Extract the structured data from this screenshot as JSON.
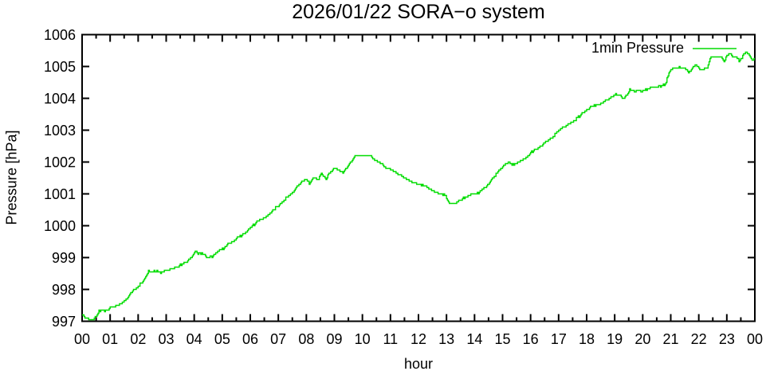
{
  "legend": {
    "label": "1min Pressure"
  },
  "colors": {
    "background": "#ffffff",
    "axis": "#000000",
    "series_green": "#00dc00"
  },
  "chart_data": {
    "type": "line",
    "title": "2026/01/22 SORA−o system",
    "xlabel": "hour",
    "ylabel": "Pressure [hPa]",
    "xlim": [
      0,
      24
    ],
    "ylim": [
      997,
      1006
    ],
    "x_tick_labels": [
      "00",
      "01",
      "02",
      "03",
      "04",
      "05",
      "06",
      "07",
      "08",
      "09",
      "10",
      "11",
      "12",
      "13",
      "14",
      "15",
      "16",
      "17",
      "18",
      "19",
      "20",
      "21",
      "22",
      "23",
      "00"
    ],
    "x_minor_tick_interval": 0.5,
    "y_ticks": [
      997,
      998,
      999,
      1000,
      1001,
      1002,
      1003,
      1004,
      1005,
      1006
    ],
    "grid": false,
    "legend_position": "top-right",
    "series": [
      {
        "name": "1min Pressure",
        "color": "#00dc00",
        "cadence": "1 minute samples",
        "units": "hPa",
        "points": [
          [
            0.0,
            997.22
          ],
          [
            0.1,
            997.12
          ],
          [
            0.2,
            997.07
          ],
          [
            0.35,
            997.05
          ],
          [
            0.5,
            997.13
          ],
          [
            0.6,
            997.32
          ],
          [
            0.75,
            997.33
          ],
          [
            0.9,
            997.36
          ],
          [
            1.0,
            997.44
          ],
          [
            1.15,
            997.45
          ],
          [
            1.3,
            997.5
          ],
          [
            1.45,
            997.6
          ],
          [
            1.6,
            997.74
          ],
          [
            1.7,
            997.85
          ],
          [
            1.85,
            998.0
          ],
          [
            2.0,
            998.1
          ],
          [
            2.15,
            998.25
          ],
          [
            2.27,
            998.4
          ],
          [
            2.36,
            998.58
          ],
          [
            2.5,
            998.55
          ],
          [
            2.65,
            998.6
          ],
          [
            2.8,
            998.52
          ],
          [
            2.95,
            998.6
          ],
          [
            3.1,
            998.6
          ],
          [
            3.27,
            998.67
          ],
          [
            3.41,
            998.72
          ],
          [
            3.56,
            998.79
          ],
          [
            3.7,
            998.86
          ],
          [
            3.9,
            999.0
          ],
          [
            4.03,
            999.2
          ],
          [
            4.1,
            999.15
          ],
          [
            4.3,
            999.12
          ],
          [
            4.45,
            999.0
          ],
          [
            4.62,
            999.03
          ],
          [
            4.75,
            999.1
          ],
          [
            4.9,
            999.24
          ],
          [
            5.05,
            999.3
          ],
          [
            5.2,
            999.42
          ],
          [
            5.35,
            999.5
          ],
          [
            5.5,
            999.6
          ],
          [
            5.65,
            999.68
          ],
          [
            5.8,
            999.76
          ],
          [
            5.95,
            999.9
          ],
          [
            6.08,
            1000.0
          ],
          [
            6.2,
            1000.1
          ],
          [
            6.35,
            1000.2
          ],
          [
            6.5,
            1000.25
          ],
          [
            6.65,
            1000.35
          ],
          [
            6.8,
            1000.48
          ],
          [
            6.95,
            1000.6
          ],
          [
            7.1,
            1000.7
          ],
          [
            7.25,
            1000.85
          ],
          [
            7.4,
            1000.95
          ],
          [
            7.55,
            1001.1
          ],
          [
            7.7,
            1001.25
          ],
          [
            7.85,
            1001.4
          ],
          [
            8.0,
            1001.45
          ],
          [
            8.12,
            1001.32
          ],
          [
            8.25,
            1001.5
          ],
          [
            8.4,
            1001.45
          ],
          [
            8.55,
            1001.65
          ],
          [
            8.7,
            1001.45
          ],
          [
            8.85,
            1001.7
          ],
          [
            9.0,
            1001.8
          ],
          [
            9.15,
            1001.75
          ],
          [
            9.3,
            1001.68
          ],
          [
            9.45,
            1001.85
          ],
          [
            9.6,
            1002.02
          ],
          [
            9.75,
            1002.2
          ],
          [
            10.25,
            1002.2
          ],
          [
            10.4,
            1002.08
          ],
          [
            10.55,
            1002.0
          ],
          [
            10.7,
            1001.92
          ],
          [
            10.85,
            1001.8
          ],
          [
            11.0,
            1001.75
          ],
          [
            11.2,
            1001.65
          ],
          [
            11.4,
            1001.55
          ],
          [
            11.6,
            1001.45
          ],
          [
            11.8,
            1001.35
          ],
          [
            12.0,
            1001.3
          ],
          [
            12.2,
            1001.27
          ],
          [
            12.4,
            1001.15
          ],
          [
            12.6,
            1001.05
          ],
          [
            12.8,
            1001.0
          ],
          [
            12.95,
            1000.95
          ],
          [
            13.1,
            1000.72
          ],
          [
            13.25,
            1000.68
          ],
          [
            13.4,
            1000.76
          ],
          [
            13.55,
            1000.85
          ],
          [
            13.7,
            1000.9
          ],
          [
            13.9,
            1000.97
          ],
          [
            14.1,
            1001.02
          ],
          [
            14.3,
            1001.15
          ],
          [
            14.5,
            1001.3
          ],
          [
            14.7,
            1001.55
          ],
          [
            14.85,
            1001.7
          ],
          [
            15.0,
            1001.85
          ],
          [
            15.2,
            1002.0
          ],
          [
            15.4,
            1001.9
          ],
          [
            15.6,
            1002.02
          ],
          [
            15.8,
            1002.08
          ],
          [
            16.0,
            1002.3
          ],
          [
            16.15,
            1002.38
          ],
          [
            16.3,
            1002.45
          ],
          [
            16.45,
            1002.55
          ],
          [
            16.6,
            1002.65
          ],
          [
            16.8,
            1002.8
          ],
          [
            17.0,
            1003.0
          ],
          [
            17.15,
            1003.08
          ],
          [
            17.3,
            1003.17
          ],
          [
            17.45,
            1003.25
          ],
          [
            17.6,
            1003.33
          ],
          [
            17.75,
            1003.45
          ],
          [
            17.9,
            1003.57
          ],
          [
            18.05,
            1003.68
          ],
          [
            18.2,
            1003.77
          ],
          [
            18.4,
            1003.8
          ],
          [
            18.6,
            1003.88
          ],
          [
            18.75,
            1003.97
          ],
          [
            18.95,
            1004.1
          ],
          [
            19.2,
            1004.12
          ],
          [
            19.28,
            1003.97
          ],
          [
            19.4,
            1004.1
          ],
          [
            19.55,
            1004.28
          ],
          [
            19.7,
            1004.22
          ],
          [
            19.95,
            1004.22
          ],
          [
            20.15,
            1004.28
          ],
          [
            20.35,
            1004.35
          ],
          [
            20.6,
            1004.38
          ],
          [
            20.8,
            1004.45
          ],
          [
            20.95,
            1004.85
          ],
          [
            21.1,
            1004.93
          ],
          [
            21.3,
            1004.97
          ],
          [
            21.5,
            1004.95
          ],
          [
            21.63,
            1004.8
          ],
          [
            21.75,
            1004.92
          ],
          [
            21.88,
            1005.05
          ],
          [
            22.0,
            1004.92
          ],
          [
            22.15,
            1004.9
          ],
          [
            22.3,
            1004.97
          ],
          [
            22.42,
            1005.3
          ],
          [
            22.8,
            1005.3
          ],
          [
            22.9,
            1005.17
          ],
          [
            23.0,
            1005.35
          ],
          [
            23.1,
            1005.4
          ],
          [
            23.2,
            1005.3
          ],
          [
            23.35,
            1005.28
          ],
          [
            23.45,
            1005.15
          ],
          [
            23.6,
            1005.38
          ],
          [
            23.7,
            1005.45
          ],
          [
            23.8,
            1005.35
          ],
          [
            23.88,
            1005.2
          ],
          [
            24.0,
            1005.22
          ]
        ]
      }
    ]
  }
}
